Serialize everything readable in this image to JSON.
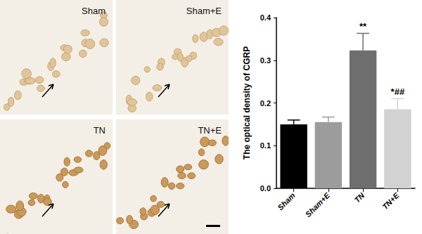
{
  "panels": {
    "labels": [
      "Sham",
      "Sham+E",
      "TN",
      "TN+E"
    ]
  },
  "chart_data": {
    "type": "bar",
    "categories": [
      "Sham",
      "Sham+E",
      "TN",
      "TN+E"
    ],
    "values": [
      0.15,
      0.155,
      0.323,
      0.185
    ],
    "errors": [
      0.01,
      0.012,
      0.04,
      0.025
    ],
    "colors": [
      "#000000",
      "#9c9c9c",
      "#6e6e6e",
      "#d2d2d2"
    ],
    "ylabel": "The optical density of CGRP",
    "ylim": [
      0,
      0.4
    ],
    "yticks": [
      {
        "value": 0,
        "label": "0.0"
      },
      {
        "value": 0.1,
        "label": "0.1"
      },
      {
        "value": 0.2,
        "label": "0.2"
      },
      {
        "value": 0.3,
        "label": "0.3"
      },
      {
        "value": 0.4,
        "label": "0.4"
      }
    ],
    "annotations": [
      {
        "category": "TN",
        "text": "**"
      },
      {
        "category": "TN+E",
        "text": "*##"
      }
    ],
    "grid": false
  }
}
